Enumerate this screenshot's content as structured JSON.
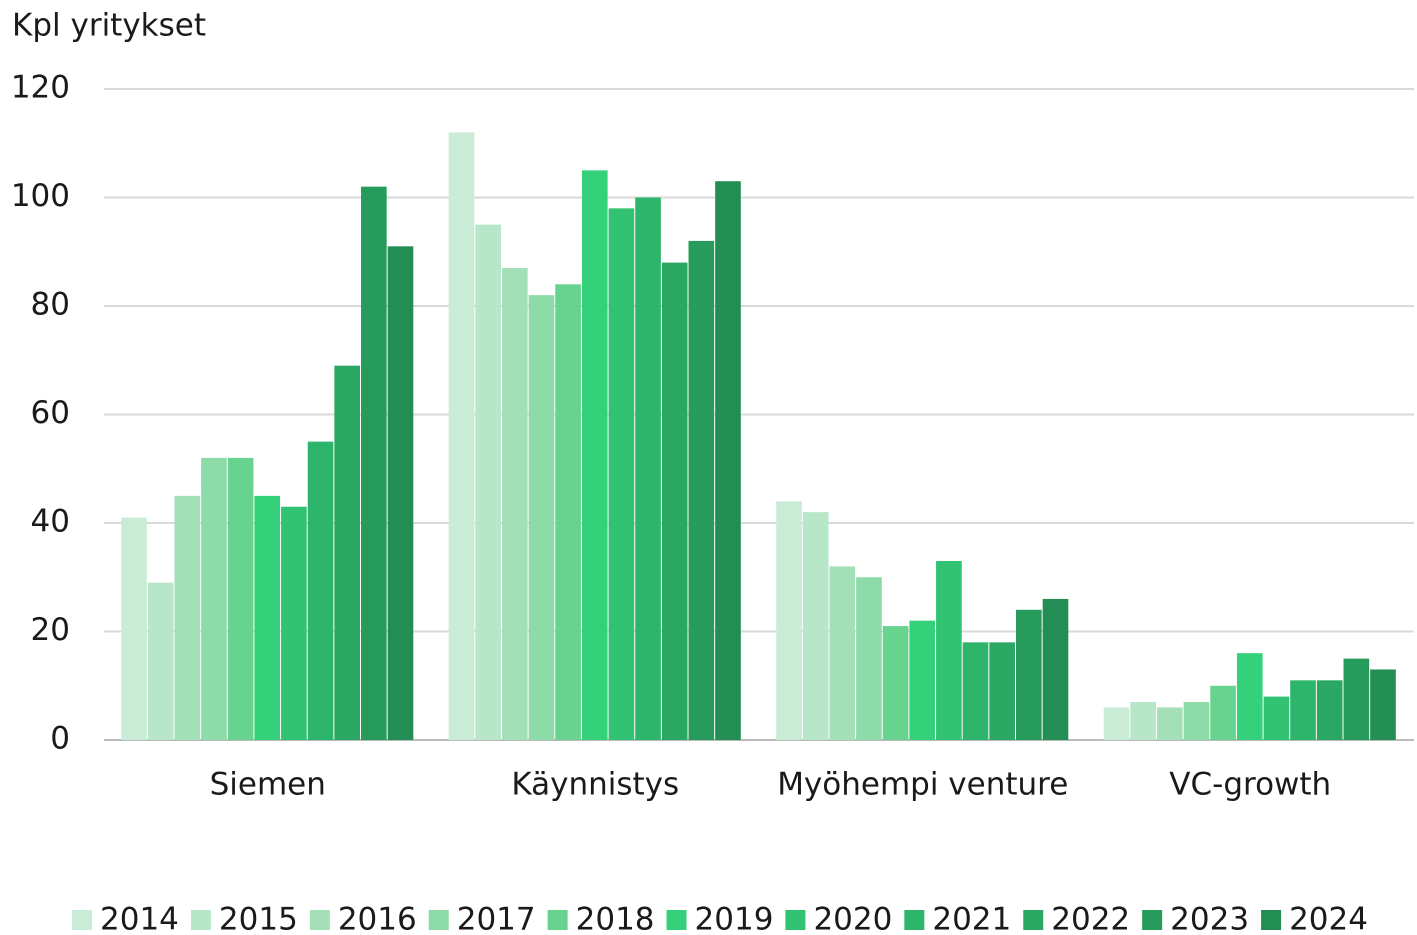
{
  "chart_data": {
    "type": "bar",
    "y_label": "Kpl yritykset",
    "categories": [
      "Siemen",
      "Käynnistys",
      "Myöhempi venture",
      "VC-growth"
    ],
    "series": [
      {
        "name": "2014",
        "color": "#c9ecd6",
        "values": [
          41,
          112,
          44,
          6
        ]
      },
      {
        "name": "2015",
        "color": "#b7e6c8",
        "values": [
          29,
          95,
          42,
          7
        ]
      },
      {
        "name": "2016",
        "color": "#a3e0b8",
        "values": [
          45,
          87,
          32,
          6
        ]
      },
      {
        "name": "2017",
        "color": "#8ddba8",
        "values": [
          52,
          82,
          30,
          7
        ]
      },
      {
        "name": "2018",
        "color": "#68d38e",
        "values": [
          52,
          84,
          21,
          10
        ]
      },
      {
        "name": "2019",
        "color": "#34d07a",
        "values": [
          45,
          105,
          22,
          16
        ]
      },
      {
        "name": "2020",
        "color": "#31c272",
        "values": [
          43,
          98,
          33,
          8
        ]
      },
      {
        "name": "2021",
        "color": "#2db56b",
        "values": [
          55,
          100,
          18,
          11
        ]
      },
      {
        "name": "2022",
        "color": "#2aa863",
        "values": [
          69,
          88,
          18,
          11
        ]
      },
      {
        "name": "2023",
        "color": "#279b5b",
        "values": [
          102,
          92,
          24,
          15
        ]
      },
      {
        "name": "2024",
        "color": "#228e53",
        "values": [
          91,
          103,
          26,
          13
        ]
      }
    ],
    "ylim": [
      0,
      120
    ],
    "yticks": [
      0,
      20,
      40,
      60,
      80,
      100,
      120
    ],
    "grid": true,
    "legend": "bottom"
  }
}
